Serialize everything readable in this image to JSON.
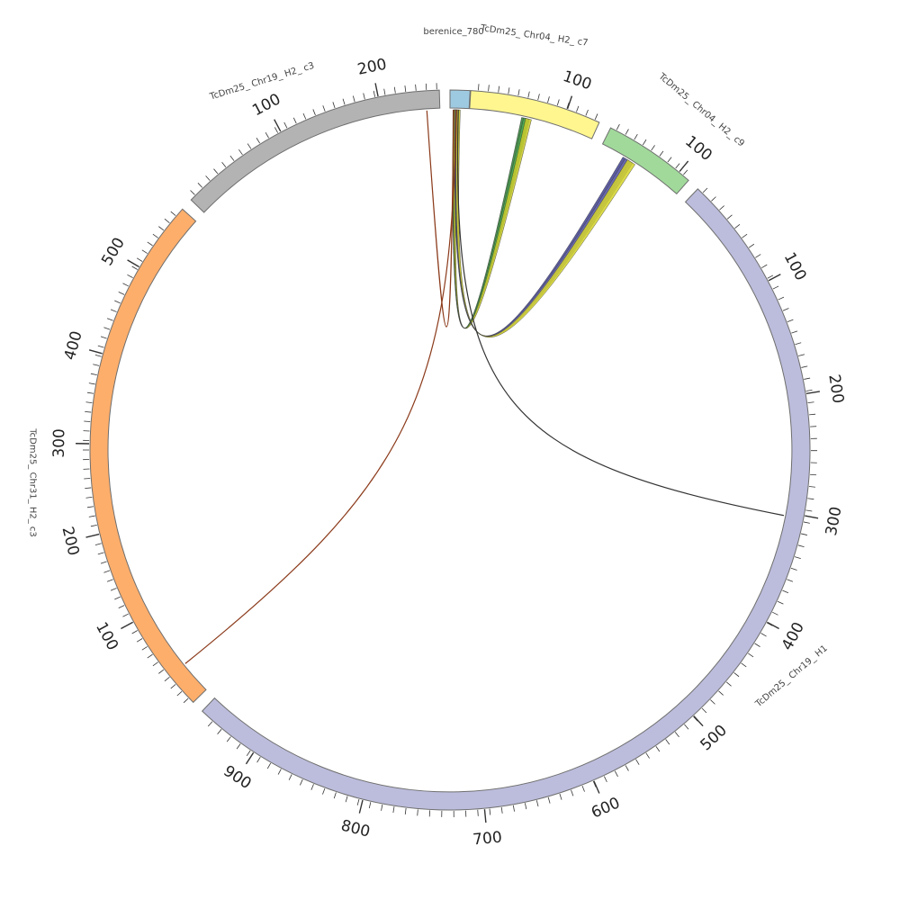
{
  "chart_data": {
    "type": "chord",
    "segments": [
      {
        "id": "berenice_780",
        "label": "berenice_780",
        "color": "#9ecae1",
        "ticks": []
      },
      {
        "id": "chr04_c7",
        "label": "TcDm25_ Chr04_ H2_ c7",
        "color": "#fff68f",
        "ticks": [
          "100"
        ]
      },
      {
        "id": "chr04_c9",
        "label": "TcDm25_ Chr04_ H2_ c9",
        "color": "#a1d99b",
        "ticks": [
          "100"
        ]
      },
      {
        "id": "chr19_h1",
        "label": "TcDm25_ Chr19_ H1",
        "color": "#bcbddc",
        "ticks": [
          "100",
          "200",
          "300",
          "400",
          "500",
          "600",
          "700",
          "800",
          "900"
        ]
      },
      {
        "id": "chr31_c3",
        "label": "TcDm25_ Chr31_ H2_ c3",
        "color": "#fdae6b",
        "ticks": [
          "100",
          "200",
          "300",
          "400",
          "500"
        ]
      },
      {
        "id": "chr19_c3",
        "label": "TcDm25_ Chr19_ H2_ c3",
        "color": "#b3b3b3",
        "ticks": [
          "100",
          "200"
        ]
      }
    ],
    "links": [
      {
        "from": "berenice_780",
        "to": "chr04_c7",
        "colors": [
          "#2e7d32",
          "#4caf50",
          "#c8c82a"
        ]
      },
      {
        "from": "berenice_780",
        "to": "chr04_c9",
        "colors": [
          "#3f3f8f",
          "#6a6ab0",
          "#d4d42a"
        ]
      },
      {
        "from": "berenice_780",
        "to": "chr19_h1",
        "colors": [
          "#333333"
        ]
      },
      {
        "from": "berenice_780",
        "to": "chr31_c3",
        "colors": [
          "#8b3a1a"
        ]
      },
      {
        "from": "berenice_780",
        "to": "chr19_c3",
        "colors": [
          "#8b3a1a"
        ]
      }
    ]
  }
}
